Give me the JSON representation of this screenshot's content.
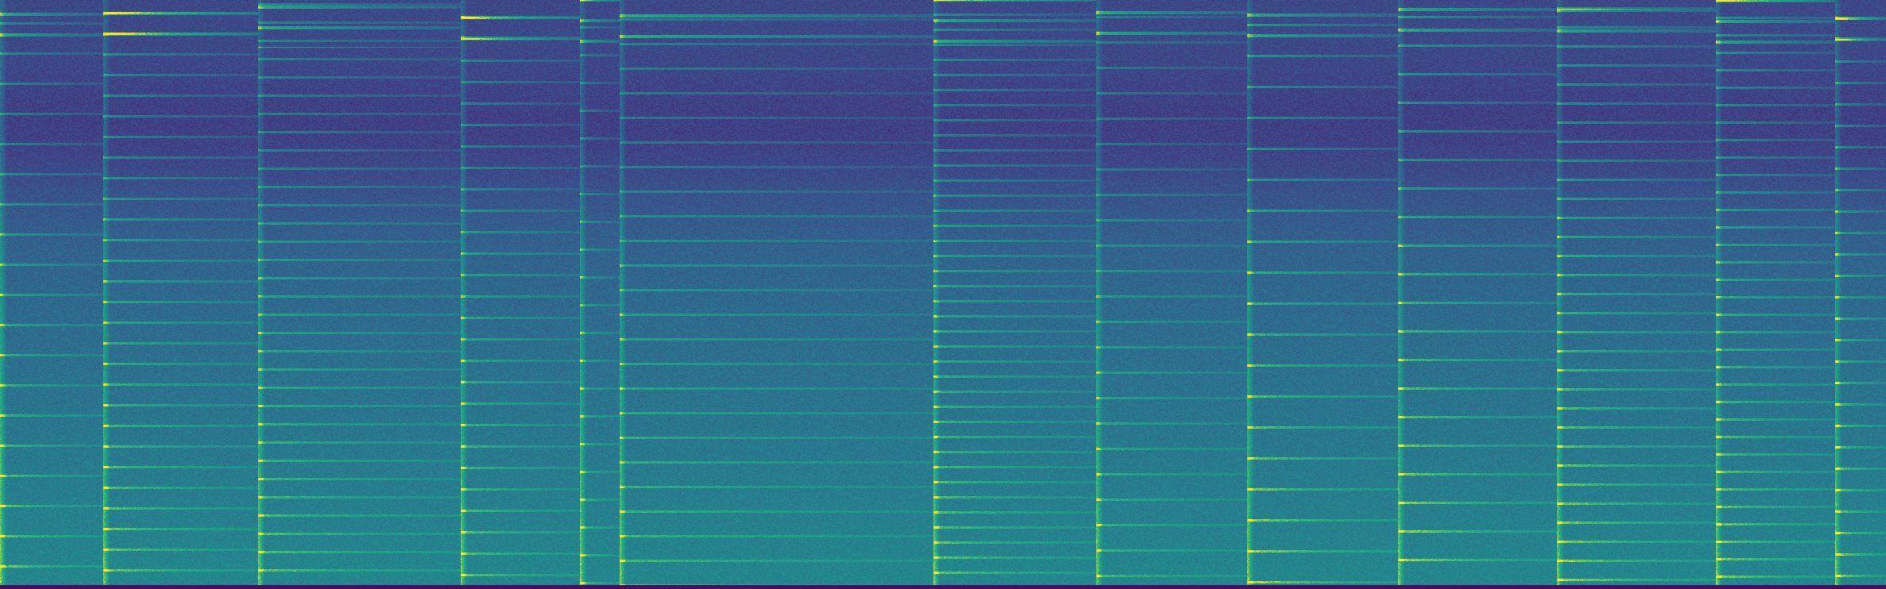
{
  "image": {
    "kind": "spectrogram",
    "colormap": "viridis",
    "palette": {
      "low": "#2b1b52",
      "mid_low": "#31688e",
      "mid": "#21918c",
      "mid_high": "#5ec962",
      "high": "#fde725"
    },
    "description_labels": []
  }
}
